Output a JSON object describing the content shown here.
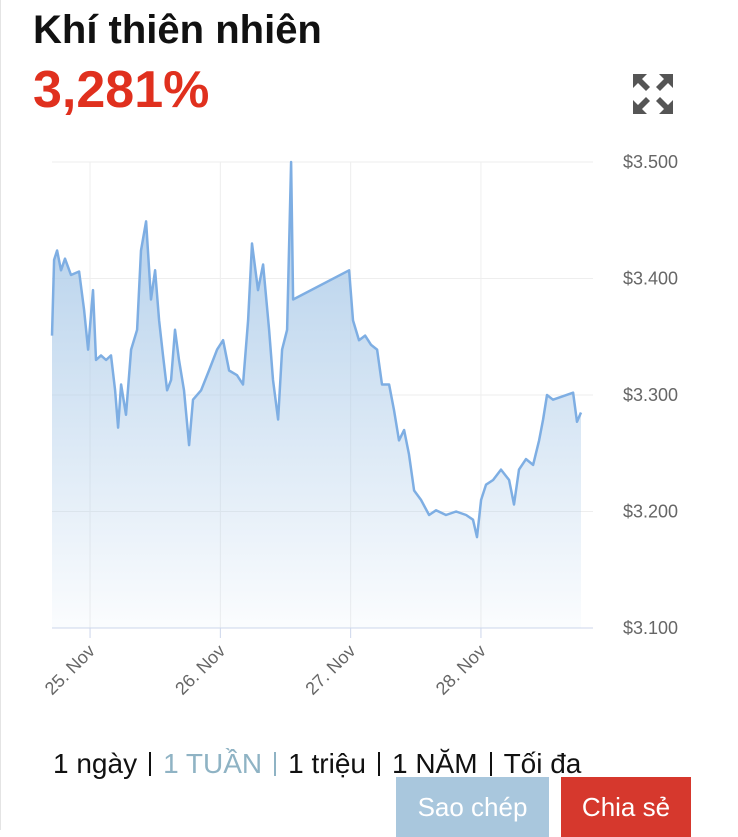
{
  "header": {
    "title": "Khí thiên nhiên",
    "value": "3,281%"
  },
  "chart_data": {
    "type": "line",
    "x": [
      24.708,
      24.724,
      24.747,
      24.777,
      24.808,
      24.854,
      24.916,
      24.954,
      24.985,
      25.023,
      25.046,
      25.084,
      25.123,
      25.161,
      25.192,
      25.215,
      25.238,
      25.276,
      25.315,
      25.361,
      25.391,
      25.43,
      25.468,
      25.499,
      25.53,
      25.56,
      25.591,
      25.622,
      25.652,
      25.683,
      25.721,
      25.76,
      25.79,
      25.852,
      25.913,
      25.975,
      26.021,
      26.067,
      26.128,
      26.174,
      26.213,
      26.243,
      26.289,
      26.328,
      26.374,
      26.404,
      26.443,
      26.474,
      26.512,
      26.543,
      26.558,
      26.988,
      27.018,
      27.064,
      27.111,
      27.157,
      27.203,
      27.241,
      27.295,
      27.333,
      27.371,
      27.41,
      27.448,
      27.487,
      27.54,
      27.602,
      27.655,
      27.732,
      27.809,
      27.886,
      27.939,
      27.97,
      28.001,
      28.039,
      28.093,
      28.154,
      28.216,
      28.254,
      28.292,
      28.346,
      28.4,
      28.446,
      28.477,
      28.507,
      28.553,
      28.707,
      28.737,
      28.768
    ],
    "series": [
      {
        "color": "#7eaee3",
        "values": [
          3.351,
          3.416,
          3.424,
          3.407,
          3.417,
          3.403,
          3.406,
          3.373,
          3.339,
          3.39,
          3.33,
          3.334,
          3.33,
          3.334,
          3.304,
          3.272,
          3.309,
          3.283,
          3.339,
          3.356,
          3.424,
          3.449,
          3.382,
          3.407,
          3.364,
          3.334,
          3.304,
          3.313,
          3.356,
          3.33,
          3.304,
          3.257,
          3.296,
          3.304,
          3.321,
          3.339,
          3.347,
          3.321,
          3.317,
          3.309,
          3.364,
          3.43,
          3.39,
          3.412,
          3.356,
          3.313,
          3.279,
          3.339,
          3.356,
          3.5,
          3.382,
          3.407,
          3.364,
          3.347,
          3.351,
          3.343,
          3.339,
          3.309,
          3.309,
          3.287,
          3.261,
          3.27,
          3.249,
          3.218,
          3.21,
          3.197,
          3.201,
          3.197,
          3.2,
          3.197,
          3.193,
          3.178,
          3.21,
          3.223,
          3.227,
          3.236,
          3.227,
          3.206,
          3.236,
          3.245,
          3.24,
          3.261,
          3.279,
          3.3,
          3.296,
          3.302,
          3.277,
          3.285
        ]
      }
    ],
    "xlim": [
      24.708,
      28.86
    ],
    "xticks": [
      {
        "value": 25,
        "label": "25. Nov"
      },
      {
        "value": 26,
        "label": "26. Nov"
      },
      {
        "value": 27,
        "label": "27. Nov"
      },
      {
        "value": 28,
        "label": "28. Nov"
      }
    ],
    "ylim": [
      3.1,
      3.5
    ],
    "yticks": [
      {
        "value": 3.5,
        "label": "$3.500"
      },
      {
        "value": 3.4,
        "label": "$3.400"
      },
      {
        "value": 3.3,
        "label": "$3.300"
      },
      {
        "value": 3.2,
        "label": "$3.200"
      },
      {
        "value": 3.1,
        "label": "$3.100"
      }
    ],
    "grid": true
  },
  "ranges": [
    {
      "label": "1 ngày",
      "active": false
    },
    {
      "label": "1 TUẦN",
      "active": true
    },
    {
      "label": "1 triệu",
      "active": false
    },
    {
      "label": "1 NĂM",
      "active": false
    },
    {
      "label": "Tối đa",
      "active": false
    }
  ],
  "buttons": [
    "Sao chép",
    "Chia sẻ"
  ]
}
